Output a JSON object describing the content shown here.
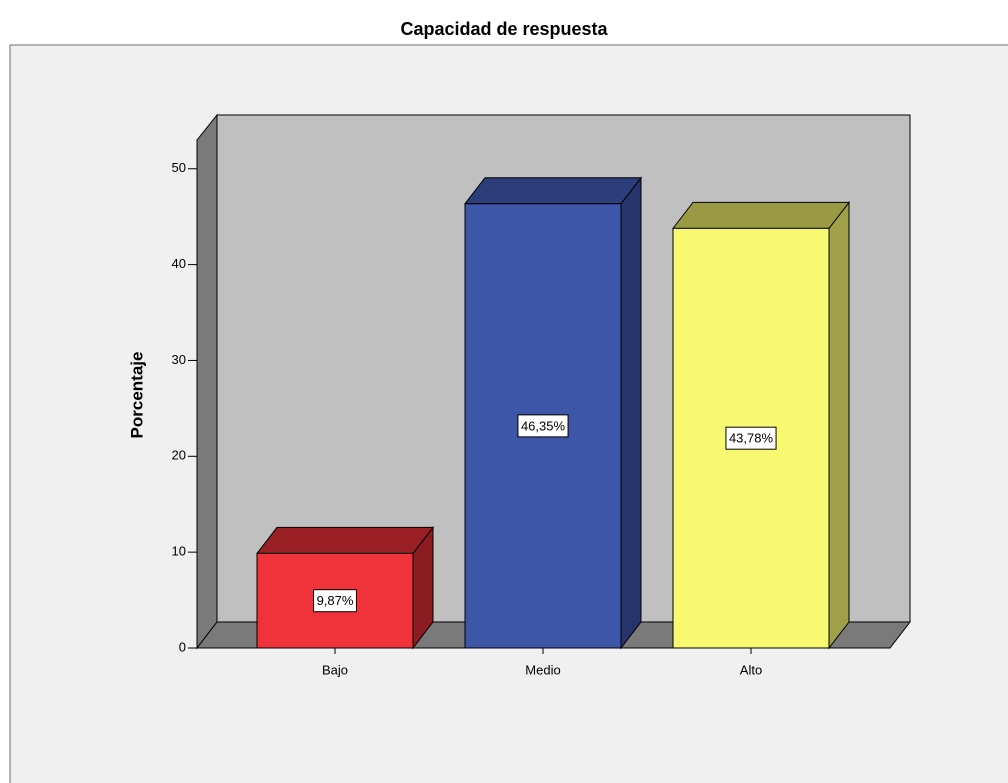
{
  "chart_data": {
    "type": "bar3d",
    "title": "Capacidad de respuesta",
    "y_label": "Porcentaje",
    "categories": [
      "Bajo",
      "Medio",
      "Alto"
    ],
    "values": [
      9.87,
      46.35,
      43.78
    ],
    "value_labels": [
      "9,87%",
      "46,35%",
      "43,78%"
    ],
    "colors": [
      "#f0323a",
      "#3d56a8",
      "#f9f871"
    ],
    "side_colors": [
      "#8b1d22",
      "#27346b",
      "#a0a048"
    ],
    "top_colors": [
      "#9a2025",
      "#2c3e7a",
      "#9a9a44"
    ],
    "ylim": [
      0,
      53
    ],
    "yticks": [
      0,
      10,
      20,
      30,
      40,
      50
    ]
  }
}
